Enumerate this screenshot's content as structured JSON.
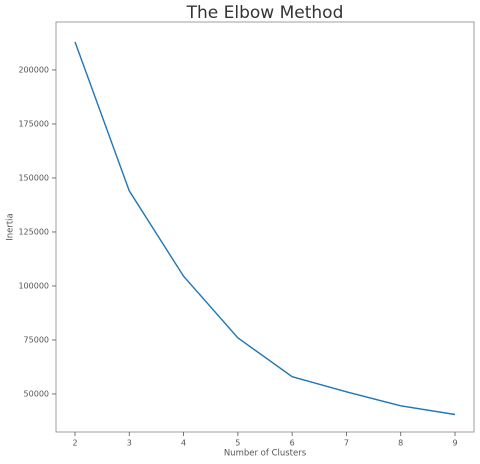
{
  "chart_data": {
    "type": "line",
    "title": "The Elbow Method",
    "x_label": "Number of Clusters",
    "y_label": "Inertia",
    "x": [
      2,
      3,
      4,
      5,
      6,
      7,
      8,
      9
    ],
    "series": [
      {
        "color": "#1f77b4",
        "values": [
          213000,
          144000,
          104500,
          76000,
          58000,
          51000,
          44500,
          40500
        ]
      }
    ],
    "xlim": [
      1.65,
      9.35
    ],
    "xticks": [
      2,
      3,
      4,
      5,
      6,
      7,
      8,
      9
    ],
    "ylim": [
      32400,
      222200
    ],
    "yticks": [
      50000,
      75000,
      100000,
      125000,
      150000,
      175000,
      200000
    ],
    "grid": false
  }
}
